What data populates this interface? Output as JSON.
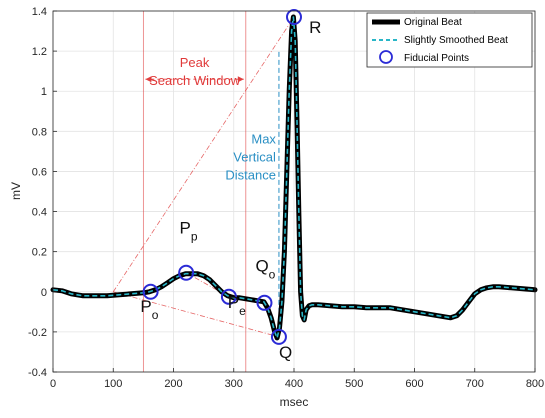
{
  "chart_data": {
    "type": "line",
    "xlabel": "msec",
    "ylabel": "mV",
    "xlim": [
      0,
      800
    ],
    "ylim": [
      -0.4,
      1.4
    ],
    "x_ticks": [
      0,
      100,
      200,
      300,
      400,
      500,
      600,
      700,
      800
    ],
    "y_ticks": [
      -0.4,
      -0.2,
      0,
      0.2,
      0.4,
      0.6,
      0.8,
      1,
      1.2,
      1.4
    ],
    "grid": "on",
    "legend_position": "top-right",
    "series": [
      {
        "name": "Original Beat",
        "color": "#000000",
        "style": "solid-thick",
        "x": [
          0,
          15,
          30,
          50,
          70,
          90,
          110,
          130,
          150,
          160,
          170,
          180,
          190,
          200,
          210,
          220,
          230,
          240,
          250,
          260,
          270,
          280,
          290,
          300,
          310,
          320,
          330,
          340,
          350,
          356,
          362,
          368,
          372,
          376,
          380,
          384,
          388,
          392,
          396,
          399,
          402,
          405,
          408,
          411,
          414,
          417,
          420,
          425,
          430,
          440,
          460,
          480,
          500,
          520,
          540,
          560,
          580,
          600,
          620,
          640,
          660,
          670,
          680,
          690,
          700,
          710,
          720,
          730,
          740,
          760,
          780,
          800
        ],
        "values": [
          0.01,
          0.005,
          -0.01,
          -0.02,
          -0.02,
          -0.02,
          -0.015,
          -0.01,
          -0.005,
          0.0,
          0.01,
          0.025,
          0.045,
          0.065,
          0.08,
          0.09,
          0.09,
          0.09,
          0.08,
          0.06,
          0.03,
          0.0,
          -0.02,
          -0.03,
          -0.03,
          -0.035,
          -0.04,
          -0.045,
          -0.05,
          -0.08,
          -0.13,
          -0.2,
          -0.23,
          -0.18,
          -0.05,
          0.2,
          0.6,
          1.0,
          1.3,
          1.37,
          1.25,
          0.85,
          0.4,
          0.0,
          -0.12,
          -0.14,
          -0.09,
          -0.07,
          -0.065,
          -0.065,
          -0.07,
          -0.075,
          -0.075,
          -0.08,
          -0.08,
          -0.08,
          -0.09,
          -0.1,
          -0.11,
          -0.12,
          -0.13,
          -0.12,
          -0.09,
          -0.05,
          -0.01,
          0.01,
          0.02,
          0.025,
          0.025,
          0.02,
          0.015,
          0.01
        ]
      },
      {
        "name": "Slightly Smoothed Beat",
        "color": "#29b6c7",
        "style": "dashed",
        "x": [
          0,
          15,
          30,
          50,
          70,
          90,
          110,
          130,
          150,
          160,
          170,
          180,
          190,
          200,
          210,
          220,
          230,
          240,
          250,
          260,
          270,
          280,
          290,
          300,
          310,
          320,
          330,
          340,
          350,
          356,
          362,
          368,
          372,
          376,
          380,
          384,
          388,
          392,
          396,
          399,
          402,
          405,
          408,
          411,
          414,
          417,
          420,
          425,
          430,
          440,
          460,
          480,
          500,
          520,
          540,
          560,
          580,
          600,
          620,
          640,
          660,
          670,
          680,
          690,
          700,
          710,
          720,
          730,
          740,
          760,
          780,
          800
        ],
        "values": [
          0.01,
          0.005,
          -0.01,
          -0.02,
          -0.02,
          -0.02,
          -0.015,
          -0.01,
          -0.005,
          0.0,
          0.01,
          0.025,
          0.045,
          0.065,
          0.08,
          0.09,
          0.09,
          0.09,
          0.08,
          0.06,
          0.03,
          0.0,
          -0.02,
          -0.03,
          -0.03,
          -0.035,
          -0.04,
          -0.045,
          -0.05,
          -0.08,
          -0.13,
          -0.2,
          -0.23,
          -0.18,
          -0.05,
          0.2,
          0.6,
          1.0,
          1.3,
          1.37,
          1.25,
          0.85,
          0.4,
          0.0,
          -0.12,
          -0.14,
          -0.09,
          -0.07,
          -0.065,
          -0.065,
          -0.07,
          -0.075,
          -0.075,
          -0.08,
          -0.08,
          -0.08,
          -0.09,
          -0.1,
          -0.11,
          -0.12,
          -0.13,
          -0.12,
          -0.09,
          -0.05,
          -0.01,
          0.01,
          0.02,
          0.025,
          0.025,
          0.02,
          0.015,
          0.01
        ]
      }
    ],
    "fiducial_points": {
      "name": "Fiducial Points",
      "color": "#2b2bd6",
      "points": [
        {
          "x": 162,
          "y": 0.0
        },
        {
          "x": 221,
          "y": 0.095
        },
        {
          "x": 292,
          "y": -0.025
        },
        {
          "x": 351,
          "y": -0.055
        },
        {
          "x": 375,
          "y": -0.225
        },
        {
          "x": 400,
          "y": 1.37
        }
      ]
    },
    "search_window": {
      "x_start": 150,
      "x_end": 320,
      "color": "#e04040"
    },
    "max_vertical_distance": {
      "x": 375,
      "y_from": -0.225,
      "y_to": 1.2,
      "color": "#2a8fc4"
    },
    "baseline_guides": [
      {
        "x1": 100,
        "y1": 0.0,
        "x2": 400,
        "y2": 1.37
      },
      {
        "x1": 100,
        "y1": 0.0,
        "x2": 375,
        "y2": -0.225
      },
      {
        "x1": 162,
        "y1": 0.0,
        "x2": 221,
        "y2": 0.095
      },
      {
        "x1": 221,
        "y1": 0.095,
        "x2": 292,
        "y2": -0.025
      }
    ],
    "annotations": [
      {
        "id": "po",
        "main": "P",
        "sub": "o",
        "x": 145,
        "y": -0.1
      },
      {
        "id": "pp",
        "main": "P",
        "sub": "p",
        "x": 210,
        "y": 0.29
      },
      {
        "id": "pe",
        "main": "P",
        "sub": "e",
        "x": 290,
        "y": -0.08
      },
      {
        "id": "qo",
        "main": "Q",
        "sub": "o",
        "x": 336,
        "y": 0.1
      },
      {
        "id": "q",
        "main": "Q",
        "sub": "",
        "x": 375,
        "y": -0.33
      },
      {
        "id": "r",
        "main": "R",
        "sub": "",
        "x": 425,
        "y": 1.29
      }
    ],
    "peak_window_label": [
      "Peak",
      "Search Window"
    ],
    "max_distance_label": [
      "Max",
      "Vertical",
      "Distance"
    ]
  }
}
